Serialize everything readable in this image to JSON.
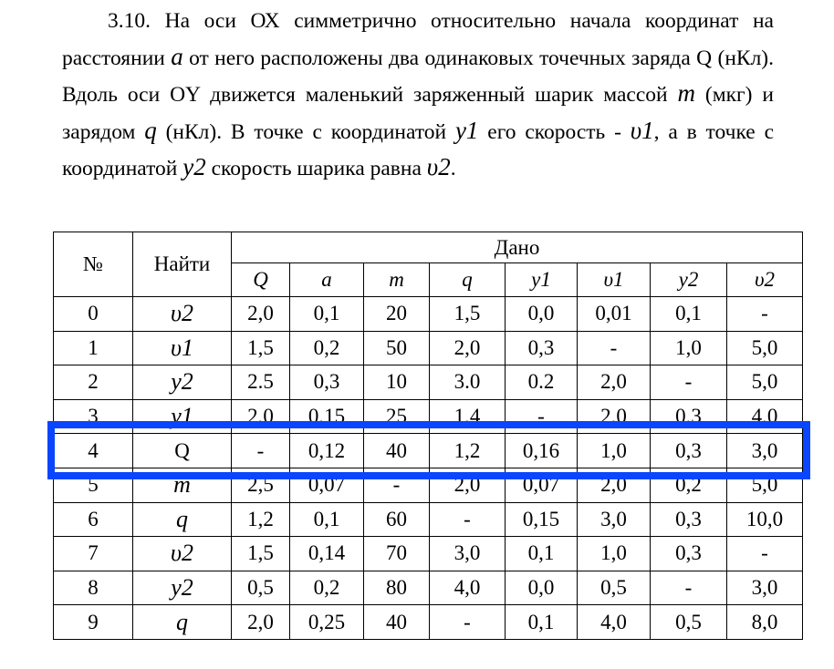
{
  "problem": {
    "number": "3.10.",
    "t1": " На оси ОХ симметрично относительно начала координат на расстоянии ",
    "v_a": "a",
    "t2": " от него расположены два одинаковых точечных заряда Q (нКл). Вдоль оси OY движется маленький заряженный шарик массой ",
    "v_m": "m",
    "t3": " (мкг) и зарядом ",
    "v_q": "q",
    "t4": " (нКл). В точке с координатой ",
    "v_y1": "y1",
    "t5": " его скорость - ",
    "v_u1": "υ1",
    "t6": ", а в точке с координатой ",
    "v_y2": "y2",
    "t7": " скорость шарика равна ",
    "v_u2": "υ2",
    "t8": "."
  },
  "table": {
    "col_no": "№",
    "col_find": "Найти",
    "col_given": "Дано",
    "given_cols": [
      "Q",
      "a",
      "m",
      "q",
      "y1",
      "υ1",
      "y2",
      "υ2"
    ],
    "rows": [
      [
        "0",
        "υ2",
        "2,0",
        "0,1",
        "20",
        "1,5",
        "0,0",
        "0,01",
        "0,1",
        "-"
      ],
      [
        "1",
        "υ1",
        "1,5",
        "0,2",
        "50",
        "2,0",
        "0,3",
        "-",
        "1,0",
        "5,0"
      ],
      [
        "2",
        "y2",
        "2.5",
        "0,3",
        "10",
        "3.0",
        "0.2",
        "2,0",
        "-",
        "5,0"
      ],
      [
        "3",
        "y1",
        "2,0",
        "0,15",
        "25",
        "1,4",
        "-",
        "2,0",
        "0,3",
        "4,0"
      ],
      [
        "4",
        "Q",
        "-",
        "0,12",
        "40",
        "1,2",
        "0,16",
        "1,0",
        "0,3",
        "3,0"
      ],
      [
        "5",
        "m",
        "2,5",
        "0,07",
        "-",
        "2,0",
        "0,07",
        "2,0",
        "0,2",
        "5,0"
      ],
      [
        "6",
        "q",
        "1,2",
        "0,1",
        "60",
        "-",
        "0,15",
        "3,0",
        "0,3",
        "10,0"
      ],
      [
        "7",
        "υ2",
        "1,5",
        "0,14",
        "70",
        "3,0",
        "0,1",
        "1,0",
        "0,3",
        "-"
      ],
      [
        "8",
        "y2",
        "0,5",
        "0,2",
        "80",
        "4,0",
        "0,0",
        "0,5",
        "-",
        "3,0"
      ],
      [
        "9",
        "q",
        "2,0",
        "0,25",
        "40",
        "-",
        "0,1",
        "4,0",
        "0,5",
        "8,0"
      ]
    ]
  },
  "highlight": {
    "row": "4",
    "color": "#0a45ff"
  }
}
